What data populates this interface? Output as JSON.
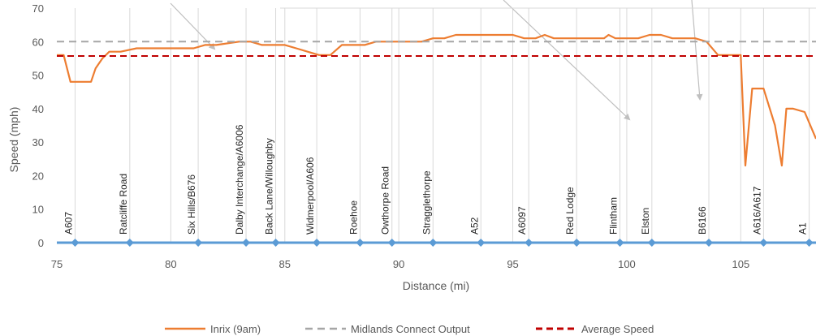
{
  "chart_data": {
    "type": "line",
    "xlabel": "Distance (mi)",
    "ylabel": "Speed (mph)",
    "xlim": [
      75,
      108.3
    ],
    "ylim": [
      0,
      70
    ],
    "x_ticks": [
      75,
      80,
      85,
      90,
      95,
      100,
      105
    ],
    "y_ticks": [
      0,
      10,
      20,
      30,
      40,
      50,
      60
    ],
    "grid": "vertical lines at junctions and at 85/90",
    "legend_position": "bottom",
    "series": [
      {
        "name": "Inrix (9am)",
        "color": "#ED7D31",
        "style": "solid",
        "x": [
          75.0,
          75.3,
          75.6,
          75.8,
          76.5,
          76.7,
          77.0,
          77.3,
          77.8,
          78.5,
          79.0,
          79.5,
          80.0,
          81.0,
          81.5,
          82.0,
          83.0,
          83.5,
          84.0,
          84.5,
          85.0,
          85.5,
          86.0,
          86.5,
          87.0,
          87.5,
          88.0,
          88.5,
          89.0,
          89.5,
          90.0,
          91.0,
          91.5,
          92.0,
          92.5,
          93.0,
          94.0,
          95.0,
          95.5,
          96.0,
          96.4,
          96.8,
          97.2,
          98.0,
          98.5,
          99.0,
          99.2,
          99.5,
          100.0,
          100.5,
          101.0,
          101.5,
          102.0,
          102.5,
          103.0,
          103.5,
          104.0,
          104.5,
          104.8,
          105.0,
          105.2,
          105.5,
          106.0,
          106.5,
          106.8,
          107.0,
          107.3,
          107.8,
          108.3
        ],
        "values": [
          56,
          56,
          48,
          48,
          48,
          52,
          55,
          57,
          57,
          58,
          58,
          58,
          58,
          58,
          59,
          59,
          60,
          60,
          59,
          59,
          59,
          58,
          57,
          56,
          56,
          59,
          59,
          59,
          60,
          60,
          60,
          60,
          61,
          61,
          62,
          62,
          62,
          62,
          61,
          61,
          62,
          61,
          61,
          61,
          61,
          61,
          62,
          61,
          61,
          61,
          62,
          62,
          61,
          61,
          61,
          60,
          56,
          56,
          56,
          56,
          23,
          46,
          46,
          35,
          23,
          40,
          40,
          39,
          31
        ]
      },
      {
        "name": "Midlands Connect Output",
        "color": "#A6A6A6",
        "style": "dashed",
        "x": [
          75,
          108.3
        ],
        "values": [
          60,
          60
        ]
      },
      {
        "name": "Average Speed",
        "color": "#C00000",
        "style": "dashed",
        "x": [
          75,
          108.3
        ],
        "values": [
          55.7,
          55.7
        ]
      }
    ],
    "junctions": [
      {
        "x": 75.8,
        "label": "A607"
      },
      {
        "x": 78.2,
        "label": "Ratcliffe Road"
      },
      {
        "x": 81.2,
        "label": "Six Hills/B676"
      },
      {
        "x": 83.3,
        "label": "Dalby Interchange/A6006"
      },
      {
        "x": 84.6,
        "label": "Back Lane/Willoughby"
      },
      {
        "x": 86.4,
        "label": "Widmerpool/A606"
      },
      {
        "x": 88.3,
        "label": "Roehoe"
      },
      {
        "x": 89.7,
        "label": "Owthorpe Road"
      },
      {
        "x": 91.5,
        "label": "Stragglethorpe"
      },
      {
        "x": 93.6,
        "label": "A52"
      },
      {
        "x": 95.7,
        "label": "A6097"
      },
      {
        "x": 97.8,
        "label": "Red Lodge"
      },
      {
        "x": 99.7,
        "label": "Flintham"
      },
      {
        "x": 101.1,
        "label": "Elston"
      },
      {
        "x": 103.6,
        "label": "B6166"
      },
      {
        "x": 106.0,
        "label": "A616/A617"
      },
      {
        "x": 108.0,
        "label": "A1"
      }
    ],
    "junction_line_color": "#5B9BD5",
    "annotation_arrows": 4
  }
}
